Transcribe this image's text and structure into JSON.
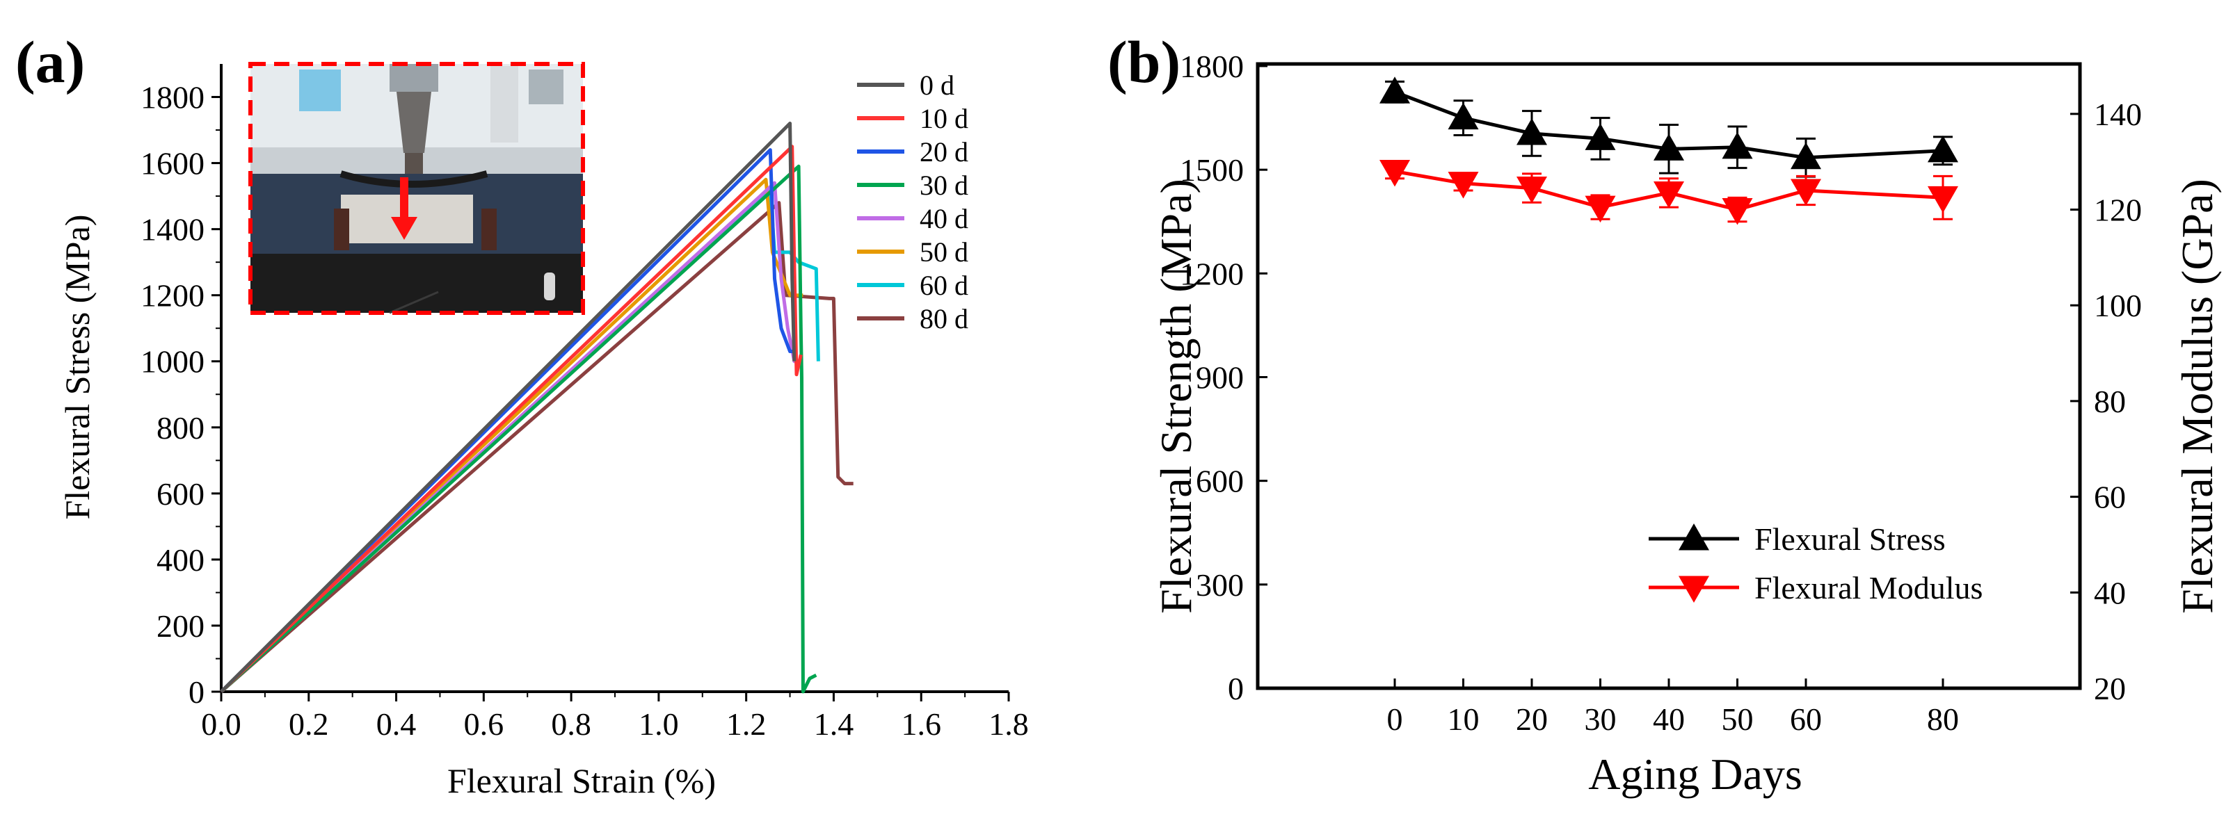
{
  "chart_data": [
    {
      "panel": "(a)",
      "type": "line",
      "xlabel": "Flexural Strain (%)",
      "ylabel": "Flexural Stress (MPa)",
      "xlim": [
        0.0,
        1.8
      ],
      "ylim": [
        0,
        1900
      ],
      "xticks": [
        "0.0",
        "0.2",
        "0.4",
        "0.6",
        "0.8",
        "1.0",
        "1.2",
        "1.4",
        "1.6",
        "1.8"
      ],
      "yticks": [
        "0",
        "200",
        "400",
        "600",
        "800",
        "1000",
        "1200",
        "1400",
        "1600",
        "1800"
      ],
      "legend_position": "top-right",
      "inset": "photo of three-point bending test fixture with red arrow indicating load direction",
      "series": [
        {
          "name": "0 d",
          "color": "#555555",
          "points": [
            [
              0,
              0
            ],
            [
              1.3,
              1720
            ],
            [
              1.305,
              1250
            ],
            [
              1.31,
              1000
            ]
          ]
        },
        {
          "name": "10 d",
          "color": "#ff3333",
          "points": [
            [
              0,
              0
            ],
            [
              1.305,
              1650
            ],
            [
              1.31,
              1300
            ],
            [
              1.315,
              960
            ],
            [
              1.325,
              1020
            ]
          ]
        },
        {
          "name": "20 d",
          "color": "#1f55e6",
          "points": [
            [
              0,
              0
            ],
            [
              1.255,
              1640
            ],
            [
              1.265,
              1250
            ],
            [
              1.28,
              1100
            ],
            [
              1.3,
              1030
            ],
            [
              1.315,
              1030
            ]
          ]
        },
        {
          "name": "30 d",
          "color": "#00a550",
          "points": [
            [
              0,
              0
            ],
            [
              1.32,
              1590
            ],
            [
              1.325,
              1100
            ],
            [
              1.327,
              950
            ],
            [
              1.33,
              30
            ],
            [
              1.33,
              0
            ],
            [
              1.345,
              40
            ],
            [
              1.36,
              50
            ]
          ]
        },
        {
          "name": "40 d",
          "color": "#c06ce6",
          "points": [
            [
              0,
              0
            ],
            [
              1.265,
              1540
            ],
            [
              1.28,
              1250
            ],
            [
              1.295,
              1100
            ],
            [
              1.31,
              1000
            ],
            [
              1.325,
              1000
            ]
          ]
        },
        {
          "name": "50 d",
          "color": "#e69a00",
          "points": [
            [
              0,
              0
            ],
            [
              1.245,
              1550
            ],
            [
              1.26,
              1330
            ],
            [
              1.3,
              1200
            ],
            [
              1.33,
              1200
            ]
          ]
        },
        {
          "name": "60 d",
          "color": "#00c8d8",
          "points": [
            [
              0,
              0
            ],
            [
              1.255,
              1520
            ],
            [
              1.265,
              1330
            ],
            [
              1.3,
              1330
            ],
            [
              1.32,
              1300
            ],
            [
              1.36,
              1280
            ],
            [
              1.365,
              1000
            ]
          ]
        },
        {
          "name": "80 d",
          "color": "#8b4040",
          "points": [
            [
              0,
              0
            ],
            [
              1.275,
              1480
            ],
            [
              1.29,
              1200
            ],
            [
              1.39,
              1190
            ],
            [
              1.4,
              1190
            ],
            [
              1.41,
              650
            ],
            [
              1.425,
              630
            ],
            [
              1.445,
              630
            ]
          ]
        }
      ]
    },
    {
      "panel": "(b)",
      "type": "line",
      "xlabel": "Aging Days",
      "ylabel": "Flexural Strength (MPa)",
      "ylabel_right": "Flexural Modulus (GPa)",
      "categories": [
        "0",
        "10",
        "20",
        "30",
        "40",
        "50",
        "60",
        "80"
      ],
      "xticks": [
        "0",
        "10",
        "20",
        "30",
        "40",
        "50",
        "60",
        "80"
      ],
      "ylim": [
        0,
        1800
      ],
      "yticks": [
        "0",
        "300",
        "600",
        "900",
        "1200",
        "1500",
        "1800"
      ],
      "ylim_right": [
        20,
        150
      ],
      "yticks_right": [
        "20",
        "40",
        "60",
        "80",
        "100",
        "120",
        "140"
      ],
      "legend_position": "bottom-right",
      "series": [
        {
          "name": "Flexural Stress",
          "color": "#000000",
          "marker": "triangle-up",
          "axis": "left",
          "values": [
            1725,
            1650,
            1605,
            1590,
            1560,
            1565,
            1535,
            1555
          ],
          "errors": [
            30,
            50,
            65,
            60,
            70,
            60,
            55,
            40
          ]
        },
        {
          "name": "Flexural Modulus",
          "color": "#ff0000",
          "marker": "triangle-down",
          "axis": "right",
          "values": [
            128,
            125.5,
            124.5,
            120.5,
            123.5,
            120,
            124,
            122.5
          ],
          "errors": [
            1.5,
            1.5,
            3,
            2.5,
            3,
            2.5,
            3,
            4.5
          ]
        }
      ]
    }
  ]
}
